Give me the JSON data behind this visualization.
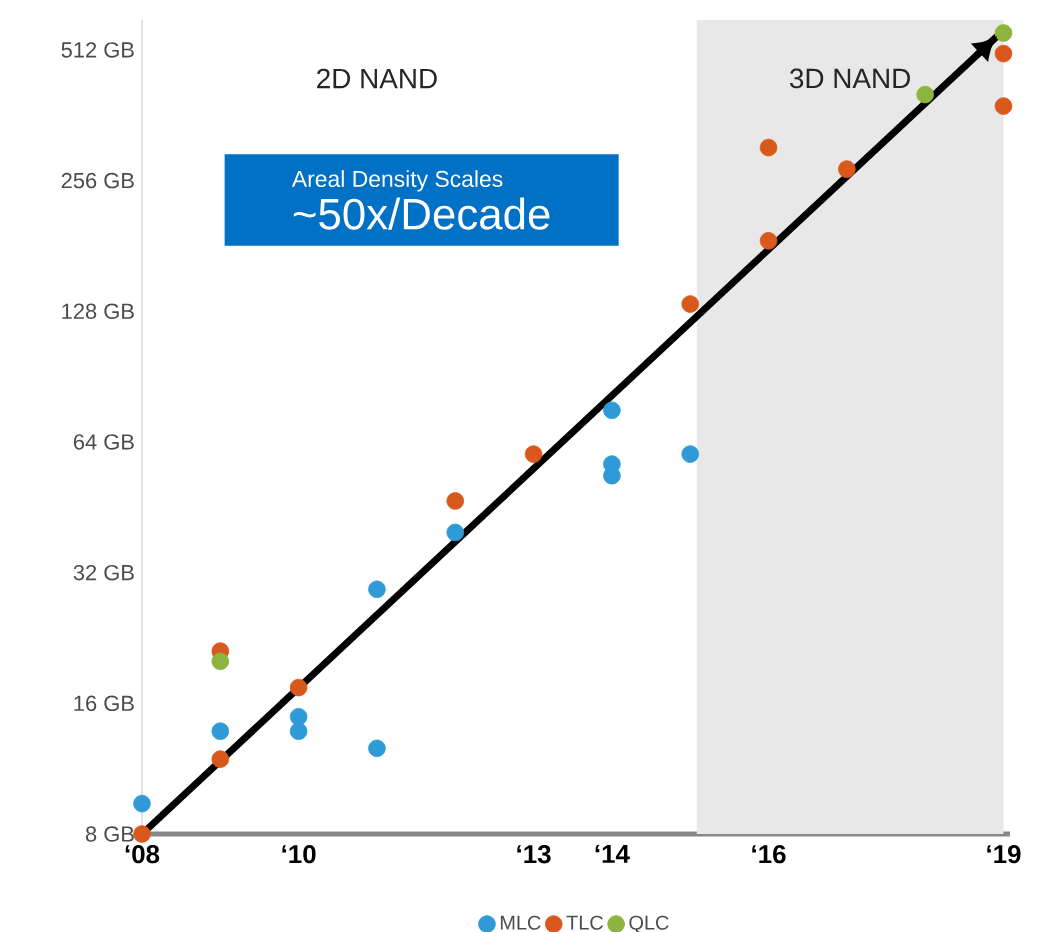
{
  "chart_data": {
    "type": "scatter",
    "log": "y",
    "legend": "bottom",
    "grid": false,
    "xlim": [
      "2008",
      "2019-02"
    ],
    "ylim": [
      8,
      600
    ],
    "xticks": [
      {
        "value": "2008",
        "label": "‘08"
      },
      {
        "value": "2010",
        "label": "‘10"
      },
      {
        "value": "2013",
        "label": "‘13"
      },
      {
        "value": "2014",
        "label": "‘14"
      },
      {
        "value": "2016",
        "label": "‘16"
      },
      {
        "value": "2019",
        "label": "‘19"
      }
    ],
    "yticks": [
      {
        "value": 8,
        "label": "8 GB"
      },
      {
        "value": 16,
        "label": "16 GB"
      },
      {
        "value": 32,
        "label": "32 GB"
      },
      {
        "value": 64,
        "label": "64 GB"
      },
      {
        "value": 128,
        "label": "128 GB"
      },
      {
        "value": 256,
        "label": "256 GB"
      },
      {
        "value": 512,
        "label": "512 GB"
      }
    ],
    "series": [
      {
        "name": "MLC",
        "marker": "circle",
        "color": "#2f9ad8",
        "x": [
          "2008",
          "2009",
          "2010",
          "2010",
          "2011",
          "2011",
          "2012",
          "2014",
          "2014",
          "2014",
          "2015"
        ],
        "values": [
          9.4,
          13.8,
          14.9,
          13.8,
          12.6,
          29.3,
          39.6,
          56.9,
          53.5,
          75.7,
          60
        ]
      },
      {
        "name": "TLC",
        "marker": "circle",
        "color": "#d9581c",
        "x": [
          "2008",
          "2009",
          "2009",
          "2010",
          "2012",
          "2013",
          "2015",
          "2016",
          "2016",
          "2017",
          "2019",
          "2019"
        ],
        "values": [
          8,
          11.9,
          21.1,
          17.4,
          46.8,
          60,
          133,
          186,
          305,
          272,
          502,
          380
        ]
      },
      {
        "name": "QLC",
        "marker": "circle",
        "color": "#8cb43f",
        "x": [
          "2009",
          "2018",
          "2019"
        ],
        "values": [
          20,
          404,
          560
        ]
      },
      {
        "type": "line",
        "marker": "none",
        "color": "#000000",
        "x": [
          "2008",
          "2018-12"
        ],
        "values": [
          8,
          550
        ]
      }
    ],
    "bands": [
      {
        "axis": "x",
        "from": "2015-02",
        "to": "2019",
        "label": "3D NAND",
        "color": "#e8e8e8"
      }
    ],
    "annotations": [
      "2D NAND",
      "Areal Density Scales",
      "~50x/Decade"
    ]
  }
}
